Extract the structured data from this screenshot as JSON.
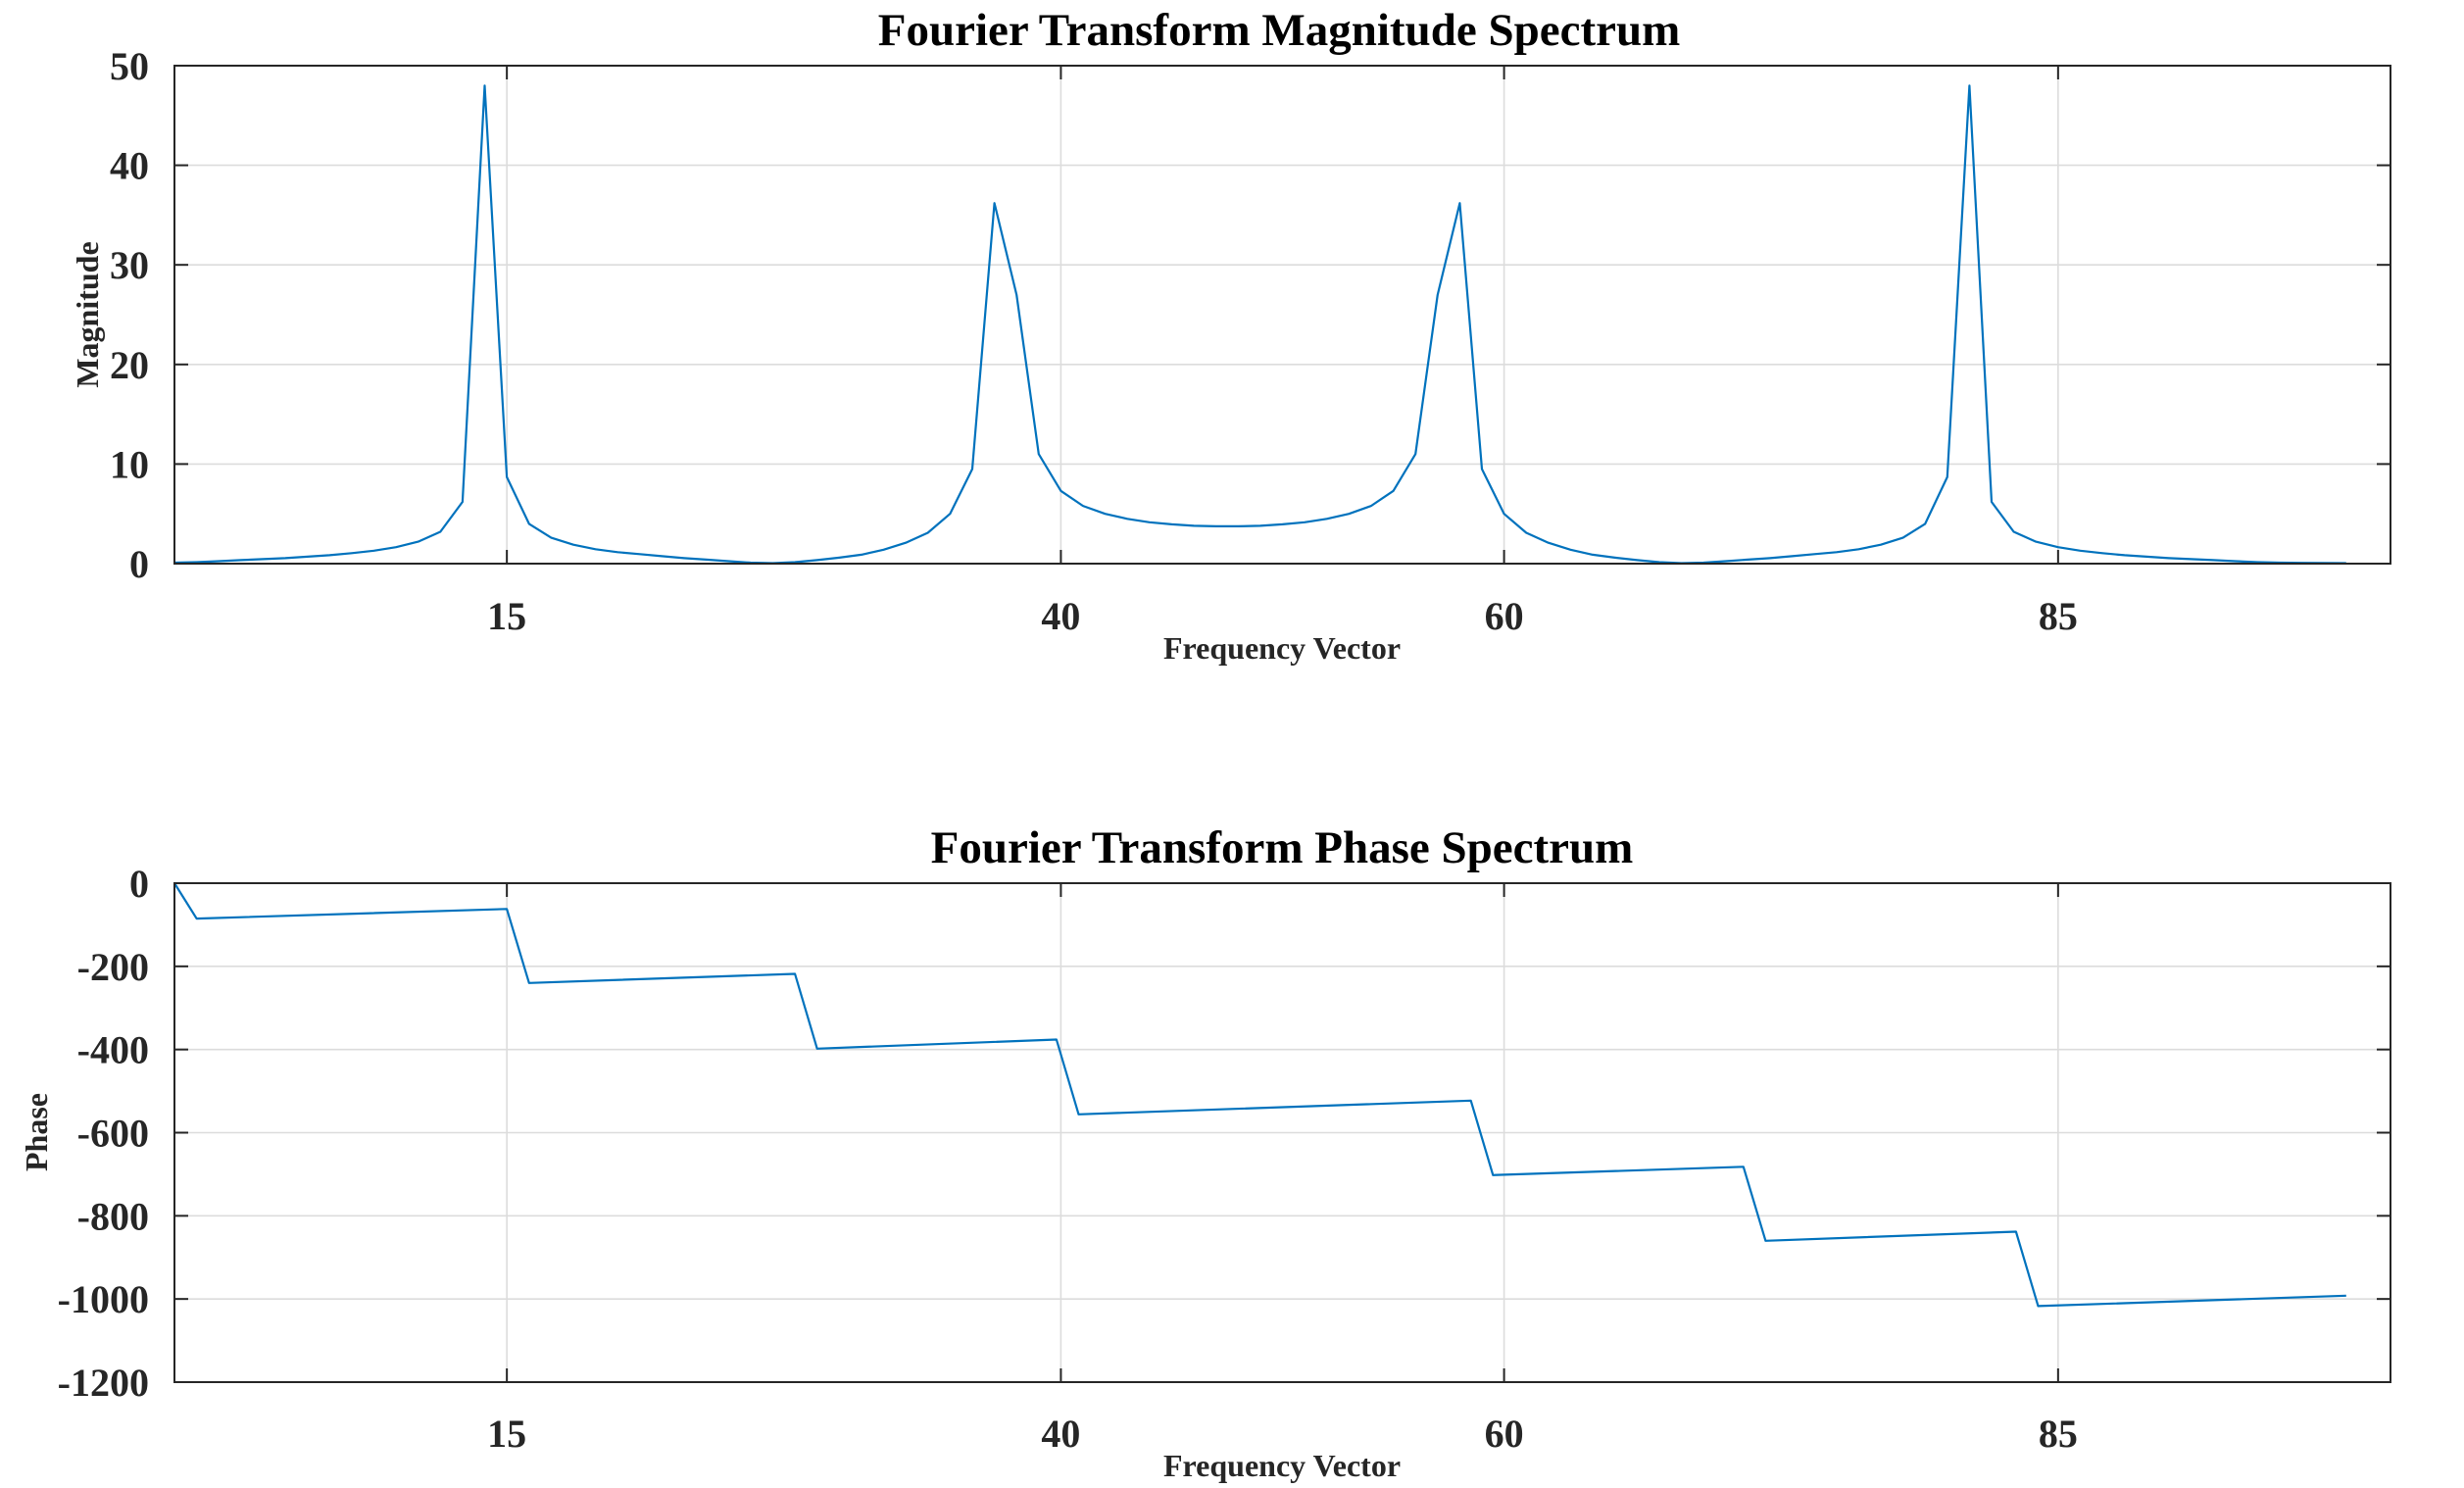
{
  "colors": {
    "series": "#0072bd",
    "grid": "#dcdcdc",
    "axis": "#262626"
  },
  "chart_data": [
    {
      "type": "line",
      "title": "Fourier Transform Magnitude Spectrum",
      "xlabel": "Frequency Vector",
      "ylabel": "Magnitude",
      "xlim": [
        0,
        100
      ],
      "ylim": [
        0,
        50
      ],
      "xticks": [
        15,
        40,
        60,
        85
      ],
      "yticks": [
        0,
        10,
        20,
        30,
        40,
        50
      ],
      "ytick_labels": [
        "0",
        "10",
        "20",
        "30",
        "40",
        "50"
      ],
      "grid": true,
      "series": [
        {
          "x": [
            0,
            1,
            2,
            3,
            4,
            5,
            6,
            7,
            8,
            9,
            10,
            11,
            12,
            13,
            14,
            15,
            16,
            17,
            18,
            19,
            20,
            21,
            22,
            23,
            24,
            25,
            26,
            27,
            28,
            29,
            30,
            31,
            32,
            33,
            34,
            35,
            36,
            37,
            38,
            39,
            40,
            41,
            42,
            43,
            44,
            45,
            46,
            47,
            48,
            49,
            50,
            51,
            52,
            53,
            54,
            55,
            56,
            57,
            58,
            59,
            60,
            61,
            62,
            63,
            64,
            65,
            66,
            67,
            68,
            69,
            70,
            71,
            72,
            73,
            74,
            75,
            76,
            77,
            78,
            79,
            80,
            81,
            82,
            83,
            84,
            85,
            86,
            87,
            88,
            89,
            90,
            91,
            92,
            93,
            94,
            95,
            96,
            97,
            98
          ],
          "y": [
            0.1,
            0.15,
            0.25,
            0.35,
            0.45,
            0.55,
            0.7,
            0.85,
            1.05,
            1.3,
            1.65,
            2.2,
            3.2,
            6.2,
            48.0,
            8.7,
            4.0,
            2.6,
            1.9,
            1.45,
            1.15,
            0.95,
            0.75,
            0.55,
            0.4,
            0.25,
            0.1,
            0.05,
            0.15,
            0.35,
            0.6,
            0.9,
            1.4,
            2.1,
            3.1,
            5.0,
            9.5,
            36.2,
            27.0,
            11.0,
            7.3,
            5.8,
            5.0,
            4.5,
            4.15,
            3.95,
            3.8,
            3.75,
            3.75,
            3.8,
            3.95,
            4.15,
            4.5,
            5.0,
            5.8,
            7.3,
            11.0,
            27.0,
            36.2,
            9.5,
            5.0,
            3.1,
            2.1,
            1.4,
            0.9,
            0.6,
            0.35,
            0.15,
            0.05,
            0.1,
            0.25,
            0.4,
            0.55,
            0.75,
            0.95,
            1.15,
            1.45,
            1.9,
            2.6,
            4.0,
            8.7,
            48.0,
            6.2,
            3.2,
            2.2,
            1.65,
            1.3,
            1.05,
            0.85,
            0.7,
            0.55,
            0.45,
            0.35,
            0.25,
            0.15,
            0.1,
            0.08,
            0.06,
            0.05
          ]
        }
      ]
    },
    {
      "type": "line",
      "title": "Fourier Transform Phase Spectrum",
      "xlabel": "Frequency Vector",
      "ylabel": "Phase",
      "xlim": [
        0,
        100
      ],
      "ylim": [
        -1200,
        0
      ],
      "xticks": [
        15,
        40,
        60,
        85
      ],
      "yticks": [
        -1200,
        -1000,
        -800,
        -600,
        -400,
        -200,
        0
      ],
      "ytick_labels": [
        "-1200",
        "-1000",
        "-800",
        "-600",
        "-400",
        "-200",
        "0"
      ],
      "grid": true,
      "series": [
        {
          "x": [
            0,
            1,
            15,
            16,
            28,
            29,
            39.8,
            40.8,
            58.5,
            59.5,
            70.8,
            71.8,
            83.1,
            84.1,
            98
          ],
          "y": [
            0,
            -85,
            -62,
            -240,
            -218,
            -398,
            -376,
            -556,
            -523,
            -702,
            -682,
            -860,
            -838,
            -1017,
            -992
          ]
        }
      ]
    }
  ]
}
